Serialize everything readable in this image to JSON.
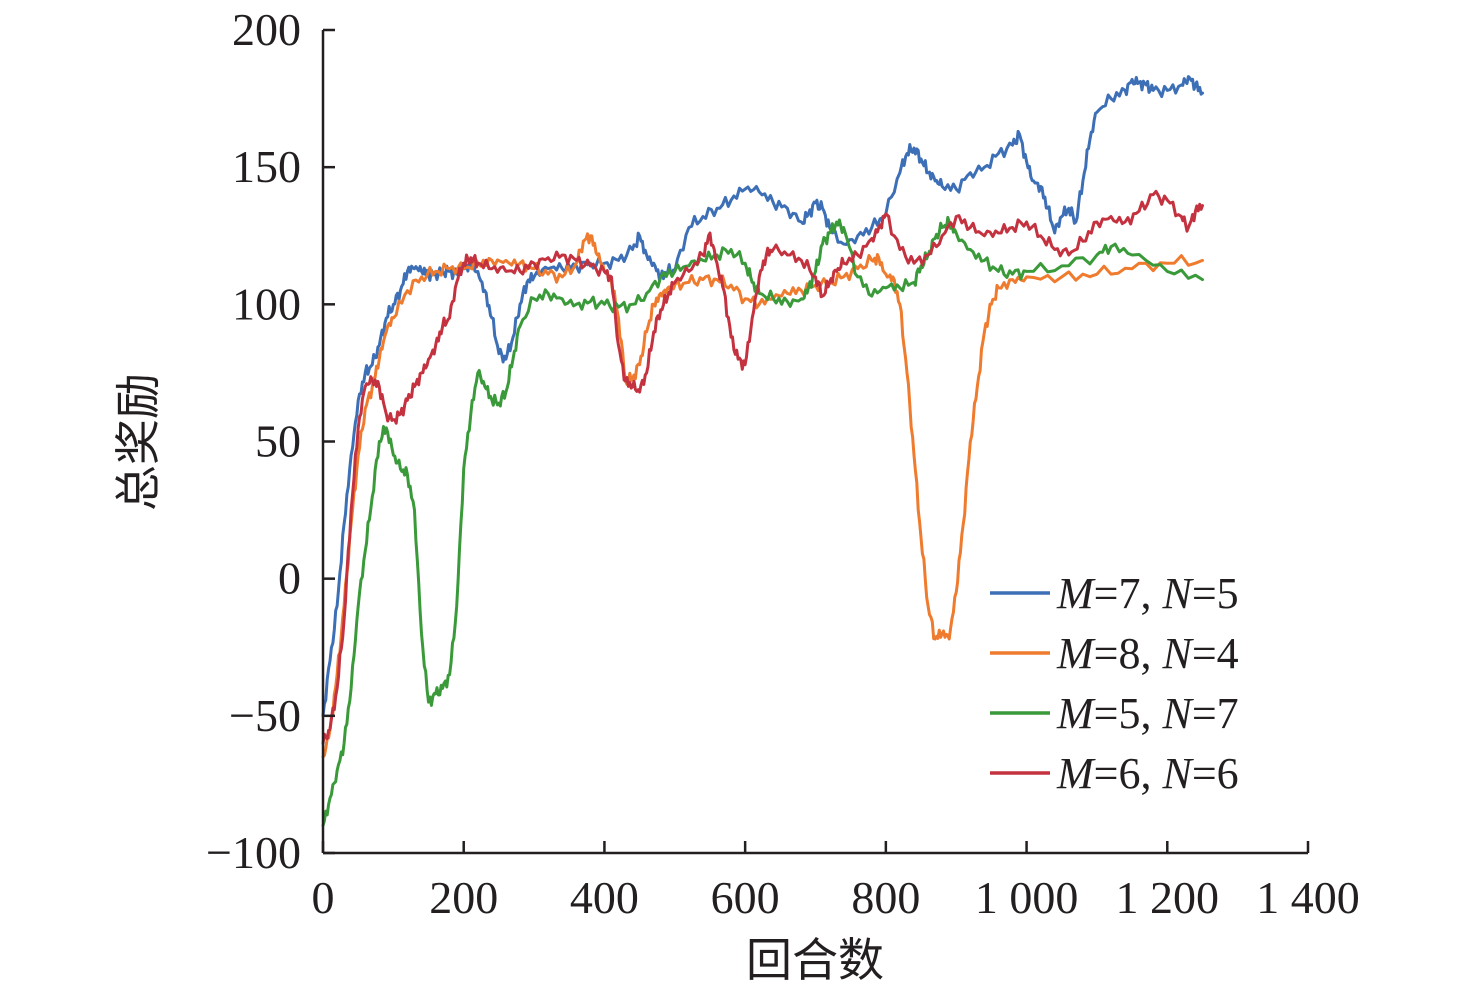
{
  "chart_data": {
    "type": "line",
    "title": "",
    "xlabel": "回合数",
    "ylabel": "总奖励",
    "xlim": [
      0,
      1400
    ],
    "ylim": [
      -100,
      200
    ],
    "xticks": [
      0,
      200,
      400,
      600,
      800,
      1000,
      1200,
      1400
    ],
    "xtick_labels": [
      "0",
      "200",
      "400",
      "600",
      "800",
      "1 000",
      "1 200",
      "1 400"
    ],
    "yticks": [
      -100,
      -50,
      0,
      50,
      100,
      150,
      200
    ],
    "ytick_labels": [
      "−100",
      "−50",
      "0",
      "50",
      "100",
      "150",
      "200"
    ],
    "grid": false,
    "legend_position": "bottom-right",
    "series": [
      {
        "legend": {
          "m_label": "M",
          "m_value": "=7, ",
          "n_label": "N",
          "n_value": "=5"
        },
        "color": "#3d6fb6",
        "x": [
          0,
          10,
          20,
          30,
          40,
          50,
          60,
          70,
          80,
          90,
          100,
          110,
          120,
          130,
          140,
          150,
          160,
          170,
          180,
          190,
          200,
          210,
          220,
          230,
          240,
          250,
          260,
          270,
          280,
          290,
          300,
          320,
          340,
          360,
          380,
          400,
          420,
          440,
          450,
          460,
          470,
          480,
          490,
          500,
          520,
          540,
          560,
          580,
          600,
          620,
          640,
          660,
          680,
          690,
          700,
          710,
          720,
          740,
          760,
          780,
          800,
          820,
          830,
          840,
          850,
          860,
          870,
          880,
          900,
          920,
          940,
          960,
          980,
          990,
          1000,
          1010,
          1020,
          1030,
          1040,
          1050,
          1060,
          1070,
          1080,
          1090,
          1100,
          1120,
          1140,
          1150,
          1160,
          1170,
          1180,
          1200,
          1220,
          1230,
          1240,
          1250
        ],
        "y": [
          -50,
          -30,
          -10,
          20,
          45,
          65,
          75,
          78,
          85,
          95,
          100,
          105,
          112,
          113,
          112,
          111,
          111,
          112,
          112,
          111,
          113,
          115,
          112,
          105,
          95,
          82,
          80,
          88,
          100,
          108,
          110,
          113,
          113,
          114,
          115,
          115,
          116,
          120,
          125,
          118,
          115,
          110,
          112,
          112,
          128,
          132,
          135,
          138,
          142,
          141,
          137,
          135,
          130,
          133,
          137,
          135,
          128,
          122,
          125,
          128,
          133,
          148,
          155,
          157,
          153,
          148,
          145,
          143,
          142,
          148,
          150,
          155,
          158,
          162,
          152,
          145,
          143,
          135,
          126,
          132,
          135,
          130,
          145,
          160,
          170,
          175,
          178,
          182,
          181,
          180,
          178,
          178,
          180,
          183,
          180,
          177
        ]
      },
      {
        "legend": {
          "m_label": "M",
          "m_value": "=8, ",
          "n_label": "N",
          "n_value": "=4"
        },
        "color": "#ef7b2e",
        "x": [
          0,
          10,
          20,
          30,
          40,
          50,
          60,
          70,
          80,
          90,
          100,
          120,
          140,
          160,
          180,
          200,
          220,
          240,
          260,
          280,
          300,
          320,
          340,
          360,
          370,
          380,
          390,
          400,
          410,
          420,
          430,
          440,
          450,
          460,
          470,
          480,
          490,
          500,
          520,
          540,
          560,
          580,
          600,
          620,
          640,
          660,
          680,
          700,
          720,
          740,
          760,
          780,
          790,
          800,
          810,
          820,
          830,
          840,
          850,
          860,
          870,
          880,
          890,
          900,
          910,
          920,
          930,
          940,
          950,
          960,
          980,
          1000,
          1050,
          1100,
          1150,
          1200,
          1250
        ],
        "y": [
          -65,
          -55,
          -35,
          -10,
          20,
          45,
          62,
          70,
          80,
          90,
          95,
          105,
          110,
          112,
          113,
          113,
          115,
          116,
          116,
          115,
          113,
          111,
          110,
          115,
          123,
          125,
          118,
          112,
          108,
          95,
          72,
          73,
          78,
          90,
          100,
          104,
          106,
          107,
          108,
          109,
          109,
          107,
          102,
          100,
          102,
          104,
          105,
          107,
          108,
          110,
          113,
          116,
          117,
          111,
          110,
          100,
          75,
          45,
          15,
          -10,
          -22,
          -20,
          -22,
          -5,
          20,
          50,
          70,
          90,
          100,
          106,
          109,
          110,
          110,
          111,
          113,
          115,
          116
        ]
      },
      {
        "legend": {
          "m_label": "M",
          "m_value": "=5, ",
          "n_label": "N",
          "n_value": "=7"
        },
        "color": "#3a9a3a",
        "x": [
          0,
          10,
          20,
          30,
          40,
          50,
          60,
          70,
          80,
          90,
          100,
          110,
          120,
          130,
          140,
          150,
          160,
          170,
          180,
          190,
          200,
          210,
          220,
          230,
          240,
          250,
          260,
          270,
          280,
          300,
          320,
          340,
          360,
          380,
          400,
          420,
          440,
          460,
          480,
          500,
          520,
          540,
          560,
          580,
          600,
          610,
          620,
          640,
          660,
          680,
          690,
          700,
          710,
          720,
          730,
          740,
          760,
          780,
          800,
          820,
          840,
          850,
          860,
          870,
          880,
          890,
          900,
          920,
          940,
          960,
          980,
          1000,
          1050,
          1100,
          1120,
          1150,
          1200,
          1250
        ],
        "y": [
          -90,
          -80,
          -70,
          -60,
          -40,
          -10,
          10,
          30,
          50,
          55,
          45,
          40,
          38,
          25,
          -20,
          -45,
          -42,
          -40,
          -35,
          -10,
          40,
          60,
          75,
          70,
          65,
          64,
          68,
          80,
          92,
          102,
          104,
          102,
          100,
          101,
          100,
          99,
          100,
          104,
          110,
          112,
          114,
          116,
          118,
          120,
          115,
          108,
          104,
          102,
          101,
          102,
          106,
          112,
          122,
          126,
          130,
          128,
          110,
          103,
          106,
          106,
          108,
          114,
          118,
          124,
          128,
          130,
          126,
          120,
          116,
          112,
          111,
          112,
          114,
          118,
          121,
          118,
          112,
          109
        ]
      },
      {
        "legend": {
          "m_label": "M",
          "m_value": "=6, ",
          "n_label": "N",
          "n_value": "=6"
        },
        "color": "#c4323f",
        "x": [
          0,
          10,
          20,
          30,
          40,
          50,
          60,
          70,
          80,
          90,
          100,
          110,
          120,
          130,
          140,
          150,
          160,
          170,
          180,
          190,
          200,
          210,
          220,
          240,
          260,
          280,
          300,
          320,
          340,
          360,
          380,
          400,
          410,
          420,
          430,
          440,
          450,
          460,
          470,
          480,
          490,
          500,
          520,
          540,
          550,
          560,
          570,
          580,
          590,
          600,
          610,
          620,
          630,
          640,
          660,
          680,
          700,
          710,
          720,
          730,
          740,
          760,
          780,
          790,
          800,
          820,
          840,
          860,
          880,
          900,
          920,
          940,
          960,
          980,
          1000,
          1020,
          1040,
          1060,
          1080,
          1100,
          1120,
          1140,
          1160,
          1180,
          1200,
          1220,
          1230,
          1240,
          1250
        ],
        "y": [
          -60,
          -55,
          -40,
          -15,
          25,
          55,
          70,
          72,
          70,
          60,
          58,
          60,
          65,
          70,
          75,
          80,
          85,
          92,
          95,
          108,
          115,
          117,
          115,
          113,
          112,
          112,
          115,
          117,
          118,
          116,
          114,
          112,
          110,
          85,
          72,
          70,
          68,
          75,
          90,
          98,
          103,
          108,
          112,
          118,
          126,
          115,
          105,
          88,
          80,
          78,
          95,
          110,
          118,
          120,
          118,
          116,
          110,
          103,
          108,
          112,
          115,
          118,
          124,
          128,
          133,
          120,
          115,
          118,
          125,
          132,
          128,
          125,
          126,
          128,
          130,
          125,
          120,
          118,
          123,
          130,
          132,
          130,
          134,
          140,
          138,
          132,
          128,
          134,
          136
        ]
      }
    ]
  }
}
